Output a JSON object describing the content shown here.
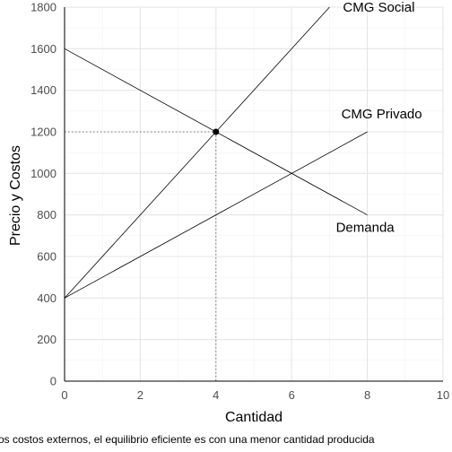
{
  "chart_data": {
    "type": "line",
    "xlabel": "Cantidad",
    "ylabel": "Precio y Costos",
    "caption": "os costos externos, el equilibrio eficiente es con una menor cantidad producida",
    "xlim": [
      0,
      10
    ],
    "ylim": [
      0,
      1800
    ],
    "x_ticks": [
      0,
      2,
      4,
      6,
      8,
      10
    ],
    "y_ticks": [
      0,
      200,
      400,
      600,
      800,
      1000,
      1200,
      1400,
      1600,
      1800
    ],
    "grid": true,
    "series": [
      {
        "name": "CMG Social",
        "points": [
          [
            0,
            400
          ],
          [
            7,
            1800
          ]
        ]
      },
      {
        "name": "CMG Privado",
        "points": [
          [
            0,
            400
          ],
          [
            8,
            1200
          ]
        ]
      },
      {
        "name": "Demanda",
        "points": [
          [
            0,
            1600
          ],
          [
            8,
            800
          ]
        ]
      }
    ],
    "equilibrium": {
      "x": 4,
      "y": 1200
    }
  }
}
